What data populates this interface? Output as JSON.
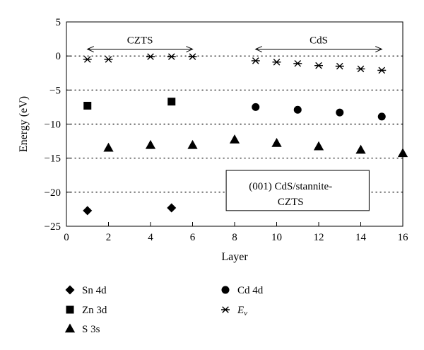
{
  "chart_data": {
    "type": "scatter",
    "xlabel": "Layer",
    "ylabel": "Energy (eV)",
    "xlim": [
      0,
      16
    ],
    "ylim": [
      -25,
      5
    ],
    "x_ticks": [
      "0",
      "2",
      "4",
      "6",
      "8",
      "10",
      "12",
      "14",
      "16"
    ],
    "y_ticks": [
      "5",
      "0",
      "−5",
      "−10",
      "−15",
      "−20",
      "−25"
    ],
    "grid": "horizontal dotted",
    "region_labels": [
      {
        "text": "CZTS",
        "x_from": 1,
        "x_to": 6
      },
      {
        "text": "CdS",
        "x_from": 9,
        "x_to": 15
      }
    ],
    "annotation": [
      "(001) CdS/stannite-",
      "CZTS"
    ],
    "series": [
      {
        "name": "Sn 4d",
        "marker": "diamond",
        "x": [
          1,
          5
        ],
        "y": [
          -22.7,
          -22.3
        ]
      },
      {
        "name": "Zn 3d",
        "marker": "square",
        "x": [
          1,
          5
        ],
        "y": [
          -7.3,
          -6.7
        ]
      },
      {
        "name": "S 3s",
        "marker": "triangle",
        "x": [
          2,
          4,
          6,
          8,
          10,
          12,
          14,
          16
        ],
        "y": [
          -13.5,
          -13.1,
          -13.1,
          -12.3,
          -12.8,
          -13.3,
          -13.8,
          -14.3
        ]
      },
      {
        "name": "Cd 4d",
        "marker": "circle",
        "x": [
          9,
          11,
          13,
          15
        ],
        "y": [
          -7.5,
          -7.9,
          -8.3,
          -8.9
        ]
      },
      {
        "name": "E",
        "name_subscript": "v",
        "marker": "asterisk",
        "x": [
          1,
          2,
          4,
          5,
          6,
          9,
          10,
          11,
          12,
          13,
          14,
          15
        ],
        "y": [
          -0.5,
          -0.5,
          -0.1,
          -0.1,
          -0.1,
          -0.7,
          -0.9,
          -1.1,
          -1.4,
          -1.5,
          -1.9,
          -2.1
        ]
      }
    ]
  }
}
